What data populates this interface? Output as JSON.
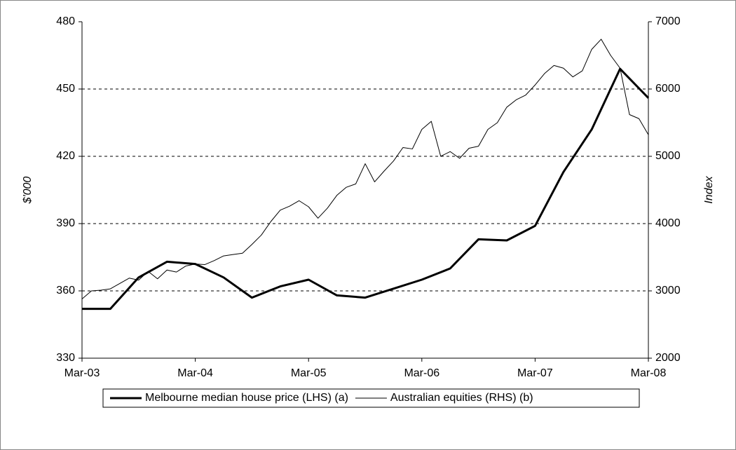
{
  "chart_data": {
    "type": "line",
    "y_label": "$'000",
    "y2_label": "Index",
    "xlim": [
      0,
      60
    ],
    "xticks": [
      {
        "value": 0,
        "label": "Mar-03"
      },
      {
        "value": 12,
        "label": "Mar-04"
      },
      {
        "value": 24,
        "label": "Mar-05"
      },
      {
        "value": 36,
        "label": "Mar-06"
      },
      {
        "value": 48,
        "label": "Mar-07"
      },
      {
        "value": 60,
        "label": "Mar-08"
      }
    ],
    "ylim": [
      330,
      480
    ],
    "yticks": [
      330,
      360,
      390,
      420,
      450,
      480
    ],
    "y2lim": [
      2000,
      7000
    ],
    "y2ticks": [
      2000,
      3000,
      4000,
      5000,
      6000,
      7000
    ],
    "grid": true,
    "series": [
      {
        "name": "Melbourne median house price (LHS) (a)",
        "color": "#000000",
        "width": 3,
        "x": [
          0,
          3,
          6,
          9,
          12,
          15,
          18,
          21,
          24,
          27,
          30,
          33,
          36,
          39,
          42,
          45,
          48,
          51,
          54,
          57,
          60
        ],
        "values": [
          352,
          352,
          366,
          373,
          372,
          366,
          357,
          362,
          365,
          358,
          357,
          361,
          365,
          370,
          383,
          382.5,
          389,
          413,
          432,
          459,
          446
        ]
      },
      {
        "name": "Australian equities (RHS) (b)",
        "color": "#000000",
        "width": 1,
        "axis": "y2",
        "x": [
          0,
          1,
          2,
          3,
          4,
          5,
          6,
          7,
          8,
          9,
          10,
          11,
          12,
          13,
          14,
          15,
          16,
          17,
          18,
          19,
          20,
          21,
          22,
          23,
          24,
          25,
          26,
          27,
          28,
          29,
          30,
          31,
          32,
          33,
          34,
          35,
          36,
          37,
          38,
          39,
          40,
          41,
          42,
          43,
          44,
          45,
          46,
          47,
          48,
          49,
          50,
          51,
          52,
          53,
          54,
          55,
          56,
          57,
          58,
          59,
          60
        ],
        "values": [
          2880,
          3000,
          3010,
          3030,
          3110,
          3190,
          3160,
          3290,
          3180,
          3310,
          3280,
          3370,
          3400,
          3390,
          3450,
          3520,
          3540,
          3560,
          3690,
          3830,
          4030,
          4200,
          4260,
          4340,
          4250,
          4080,
          4230,
          4420,
          4540,
          4590,
          4890,
          4620,
          4780,
          4930,
          5130,
          5110,
          5400,
          5520,
          5000,
          5070,
          4970,
          5120,
          5150,
          5400,
          5500,
          5730,
          5840,
          5910,
          6060,
          6230,
          6350,
          6310,
          6180,
          6270,
          6590,
          6740,
          6500,
          6310,
          5620,
          5560,
          5320
        ]
      }
    ]
  }
}
